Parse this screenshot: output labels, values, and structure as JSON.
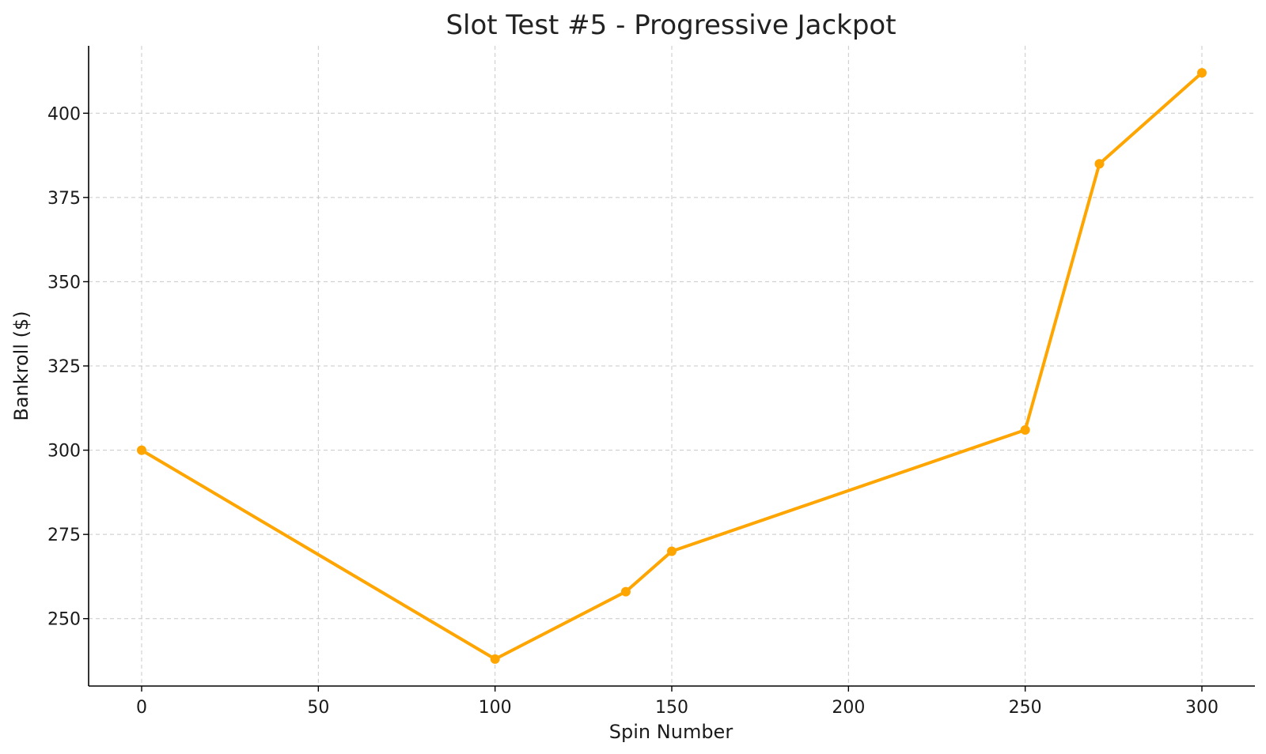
{
  "chart_data": {
    "type": "line",
    "title": "Slot Test #5 - Progressive Jackpot",
    "xlabel": "Spin Number",
    "ylabel": "Bankroll ($)",
    "xlim": [
      -15,
      315
    ],
    "ylim": [
      230,
      420
    ],
    "xticks": [
      0,
      50,
      100,
      150,
      200,
      250,
      300
    ],
    "yticks": [
      250,
      275,
      300,
      325,
      350,
      375,
      400
    ],
    "grid": true,
    "series": [
      {
        "color": "#FFA500",
        "x": [
          0,
          100,
          137,
          150,
          250,
          271,
          300
        ],
        "y": [
          300,
          238,
          258,
          270,
          306,
          385,
          412
        ]
      }
    ]
  }
}
